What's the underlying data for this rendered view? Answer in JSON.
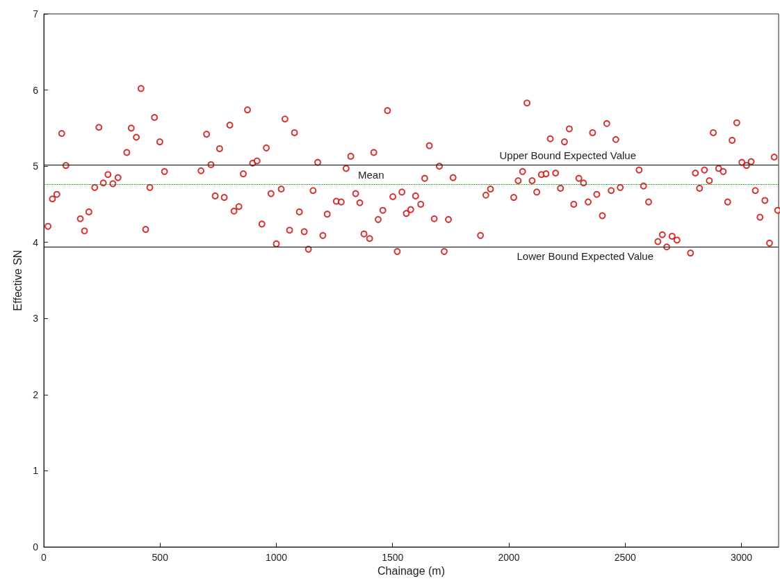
{
  "chart_data": {
    "type": "scatter",
    "xlabel": "Chainage (m)",
    "ylabel": "Effective SN",
    "marker": "circle",
    "grid": false,
    "xlim": [
      0,
      3160
    ],
    "xticks": [
      0,
      500,
      1000,
      1500,
      2000,
      2500,
      3000
    ],
    "ylim": [
      0,
      7
    ],
    "yticks": [
      0,
      1,
      2,
      3,
      4,
      5,
      6,
      7
    ],
    "x": [
      18,
      37,
      56,
      77,
      95,
      157,
      175,
      194,
      219,
      237,
      256,
      276,
      297,
      319,
      357,
      376,
      398,
      418,
      438,
      456,
      476,
      499,
      519,
      676,
      700,
      719,
      737,
      756,
      776,
      800,
      818,
      839,
      858,
      876,
      898,
      917,
      938,
      957,
      977,
      1000,
      1021,
      1037,
      1057,
      1078,
      1099,
      1120,
      1138,
      1158,
      1178,
      1200,
      1219,
      1258,
      1279,
      1300,
      1320,
      1341,
      1359,
      1377,
      1401,
      1419,
      1438,
      1458,
      1478,
      1501,
      1520,
      1540,
      1559,
      1578,
      1599,
      1621,
      1638,
      1658,
      1679,
      1701,
      1722,
      1740,
      1760,
      1878,
      1901,
      1921,
      2021,
      2040,
      2059,
      2078,
      2100,
      2120,
      2140,
      2160,
      2178,
      2201,
      2222,
      2239,
      2260,
      2279,
      2301,
      2321,
      2341,
      2360,
      2378,
      2402,
      2421,
      2440,
      2460,
      2479,
      2560,
      2579,
      2601,
      2641,
      2660,
      2679,
      2702,
      2723,
      2781,
      2802,
      2820,
      2841,
      2862,
      2879,
      2902,
      2922,
      2941,
      2960,
      2980,
      3002,
      3022,
      3042,
      3060,
      3080,
      3101,
      3121,
      3141,
      3156
    ],
    "series": [
      {
        "color": "#cc0000",
        "values": [
          4.21,
          4.57,
          4.63,
          5.43,
          5.01,
          4.31,
          4.15,
          4.4,
          4.72,
          5.51,
          4.78,
          4.89,
          4.77,
          4.85,
          5.18,
          5.5,
          5.38,
          6.02,
          4.17,
          4.72,
          5.64,
          5.32,
          4.93,
          4.94,
          5.42,
          5.02,
          4.61,
          5.23,
          4.59,
          5.54,
          4.41,
          4.47,
          4.9,
          5.74,
          5.04,
          5.07,
          4.24,
          5.24,
          4.64,
          3.98,
          4.7,
          5.62,
          4.16,
          5.44,
          4.4,
          4.14,
          3.91,
          4.68,
          5.05,
          4.09,
          4.37,
          4.54,
          4.53,
          4.97,
          5.13,
          4.64,
          4.52,
          4.11,
          4.05,
          5.18,
          4.3,
          4.42,
          5.73,
          4.6,
          3.88,
          4.66,
          4.38,
          4.43,
          4.61,
          4.5,
          4.84,
          5.27,
          4.31,
          5.0,
          3.88,
          4.3,
          4.85,
          4.09,
          4.62,
          4.7,
          4.59,
          4.81,
          4.93,
          5.83,
          4.81,
          4.66,
          4.89,
          4.9,
          5.36,
          4.91,
          4.71,
          5.32,
          5.49,
          4.5,
          4.84,
          4.78,
          4.53,
          5.44,
          4.63,
          4.35,
          5.56,
          4.68,
          5.35,
          4.72,
          4.95,
          4.74,
          4.53,
          4.01,
          4.1,
          3.94,
          4.08,
          4.03,
          3.86,
          4.91,
          4.71,
          4.95,
          4.81,
          5.44,
          4.97,
          4.93,
          4.53,
          5.34,
          5.57,
          5.05,
          5.01,
          5.06,
          4.68,
          4.33,
          4.55,
          3.99,
          5.12,
          4.42
        ]
      }
    ],
    "ref_lines": [
      {
        "axis": "y",
        "value": 5.02,
        "label": "Upper Bound Expected Value",
        "color": "#000000",
        "line_style": "solid"
      },
      {
        "axis": "y",
        "value": 4.76,
        "label": "Mean",
        "color": "#008000",
        "line_style": "dotted"
      },
      {
        "axis": "y",
        "value": 3.94,
        "label": "Lower Bound Expected Value",
        "color": "#000000",
        "line_style": "solid"
      }
    ]
  }
}
